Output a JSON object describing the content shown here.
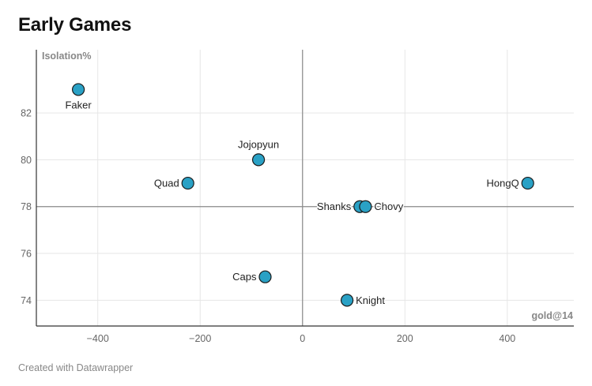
{
  "title": "Early Games",
  "footer": "Created with Datawrapper",
  "colors": {
    "point": "#2aa1c5",
    "point_stroke": "#1a1a1a"
  },
  "chart_data": {
    "type": "scatter",
    "title": "Early Games",
    "xlabel": "gold@14",
    "ylabel": "Isolation%",
    "xlim": [
      -520,
      530
    ],
    "ylim": [
      72.9,
      84.7
    ],
    "xticks": [
      -400,
      -200,
      0,
      200,
      400
    ],
    "yticks": [
      74,
      76,
      78,
      80,
      82
    ],
    "xtick_labels": [
      "−400",
      "−200",
      "0",
      "200",
      "400"
    ],
    "ytick_labels": [
      "74",
      "76",
      "78",
      "80",
      "82"
    ],
    "reference_lines": {
      "x": 0,
      "y": 78
    },
    "grid": true,
    "points": [
      {
        "label": "Faker",
        "x": -438,
        "y": 83,
        "label_pos": "below"
      },
      {
        "label": "Jojopyun",
        "x": -86,
        "y": 80,
        "label_pos": "above"
      },
      {
        "label": "Quad",
        "x": -224,
        "y": 79,
        "label_pos": "left"
      },
      {
        "label": "HongQ",
        "x": 440,
        "y": 79,
        "label_pos": "left"
      },
      {
        "label": "Shanks",
        "x": 112,
        "y": 78,
        "label_pos": "left"
      },
      {
        "label": "Chovy",
        "x": 123,
        "y": 78,
        "label_pos": "right"
      },
      {
        "label": "Caps",
        "x": -73,
        "y": 75,
        "label_pos": "left"
      },
      {
        "label": "Knight",
        "x": 87,
        "y": 74,
        "label_pos": "right"
      }
    ]
  }
}
